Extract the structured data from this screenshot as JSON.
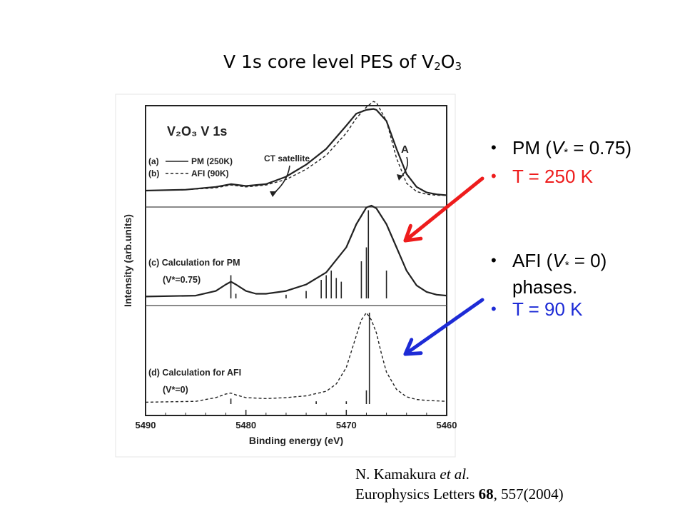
{
  "slide": {
    "title_main": "V 1s core level PES of V",
    "title_sub2": "2",
    "title_o": "O",
    "title_sub3": "3"
  },
  "bullets": [
    {
      "pre": "PM (",
      "v": "V",
      "star": "*",
      "post": " = 0.75)",
      "color": "#000000"
    },
    {
      "text": "T = 250 K",
      "color": "#ee1c1c"
    },
    {
      "pre": "AFI (",
      "v": "V",
      "star": "*",
      "post": " = 0)",
      "cont": "phases.",
      "color": "#000000"
    },
    {
      "text": "T = 90 K",
      "color": "#1d2bd6"
    }
  ],
  "arrows": [
    {
      "name": "red-arrow",
      "color": "#ee1c1c",
      "points_to": "panel-c"
    },
    {
      "name": "blue-arrow",
      "color": "#1d2bd6",
      "points_to": "panel-d"
    }
  ],
  "reference": {
    "author": "N. Kamakura ",
    "etal": "et al.",
    "journal": "Europhysics Letters ",
    "volume": "68",
    "rest": ", 557(2004)"
  },
  "chart_data": {
    "type": "line",
    "figure_title": "V₂O₃  V 1s",
    "xlabel": "Binding energy (eV)",
    "ylabel": "Intensity (arb.units)",
    "xlim": [
      5490,
      5460
    ],
    "x_reversed": true,
    "xticks": [
      5490,
      5480,
      5470,
      5460
    ],
    "panels": [
      {
        "id": "ab",
        "labels": [
          "(a)",
          "(b)"
        ],
        "legend": [
          {
            "tag": "(a)",
            "name": "PM (250K)",
            "style": "solid"
          },
          {
            "tag": "(b)",
            "name": "AFI (90K)",
            "style": "dashed"
          }
        ],
        "annotations": [
          "CT satellite",
          "A"
        ],
        "series": [
          {
            "name": "PM (250K)",
            "style": "solid",
            "x": [
              5490,
              5486,
              5483,
              5481.5,
              5480,
              5478,
              5476,
              5474,
              5472,
              5470,
              5469,
              5468,
              5467.3,
              5467,
              5466,
              5465,
              5464,
              5463,
              5462,
              5461,
              5460
            ],
            "y": [
              0.1,
              0.11,
              0.14,
              0.17,
              0.15,
              0.17,
              0.25,
              0.38,
              0.55,
              0.8,
              0.93,
              0.97,
              0.98,
              0.97,
              0.85,
              0.55,
              0.28,
              0.14,
              0.08,
              0.06,
              0.05
            ]
          },
          {
            "name": "AFI (90K)",
            "style": "dashed",
            "x": [
              5490,
              5486,
              5483,
              5481.5,
              5480,
              5478,
              5476,
              5474,
              5472,
              5470,
              5469,
              5468,
              5467.3,
              5467,
              5466,
              5465,
              5464,
              5463,
              5462,
              5461,
              5460
            ],
            "y": [
              0.1,
              0.11,
              0.13,
              0.16,
              0.14,
              0.16,
              0.22,
              0.33,
              0.48,
              0.72,
              0.88,
              1.0,
              1.06,
              1.05,
              0.85,
              0.45,
              0.18,
              0.09,
              0.06,
              0.05,
              0.05
            ]
          }
        ]
      },
      {
        "id": "c",
        "labels": [
          "(c) Calculation for PM",
          "(V*=0.75)"
        ],
        "series": [
          {
            "name": "Calculation for PM",
            "style": "solid",
            "x": [
              5490,
              5485,
              5483,
              5482,
              5481.5,
              5481,
              5480,
              5479,
              5478,
              5476,
              5474,
              5472,
              5470,
              5469,
              5468,
              5467.5,
              5467,
              5466,
              5465,
              5464,
              5463,
              5462,
              5461,
              5460
            ],
            "y": [
              0.02,
              0.03,
              0.08,
              0.15,
              0.18,
              0.15,
              0.08,
              0.05,
              0.05,
              0.08,
              0.15,
              0.28,
              0.55,
              0.8,
              0.98,
              1.0,
              0.97,
              0.8,
              0.55,
              0.3,
              0.14,
              0.07,
              0.04,
              0.03
            ]
          }
        ],
        "sticks": {
          "x": [
            5481.5,
            5481,
            5476,
            5474,
            5472.5,
            5472,
            5471.5,
            5471,
            5470.5,
            5468.5,
            5468,
            5467.8,
            5466
          ],
          "h": [
            0.25,
            0.05,
            0.04,
            0.08,
            0.2,
            0.25,
            0.3,
            0.22,
            0.18,
            0.4,
            0.55,
            0.95,
            0.3
          ]
        }
      },
      {
        "id": "d",
        "labels": [
          "(d) Calculation for AFI",
          "(V*=0)"
        ],
        "series": [
          {
            "name": "Calculation for AFI",
            "style": "dashed",
            "x": [
              5490,
              5485,
              5483,
              5482,
              5481.5,
              5481,
              5480,
              5478,
              5476,
              5474,
              5472,
              5471,
              5470,
              5469,
              5468.5,
              5468,
              5467.5,
              5467,
              5466.5,
              5466,
              5465,
              5464,
              5463,
              5462,
              5460
            ],
            "y": [
              0.02,
              0.03,
              0.07,
              0.11,
              0.12,
              0.1,
              0.07,
              0.06,
              0.07,
              0.09,
              0.14,
              0.22,
              0.4,
              0.75,
              0.92,
              1.0,
              0.92,
              0.78,
              0.55,
              0.35,
              0.16,
              0.08,
              0.05,
              0.04,
              0.03
            ]
          }
        ],
        "sticks": {
          "x": [
            5481.5,
            5473,
            5470,
            5468,
            5467.7
          ],
          "h": [
            0.06,
            0.03,
            0.03,
            0.15,
            1.0
          ]
        }
      }
    ]
  }
}
